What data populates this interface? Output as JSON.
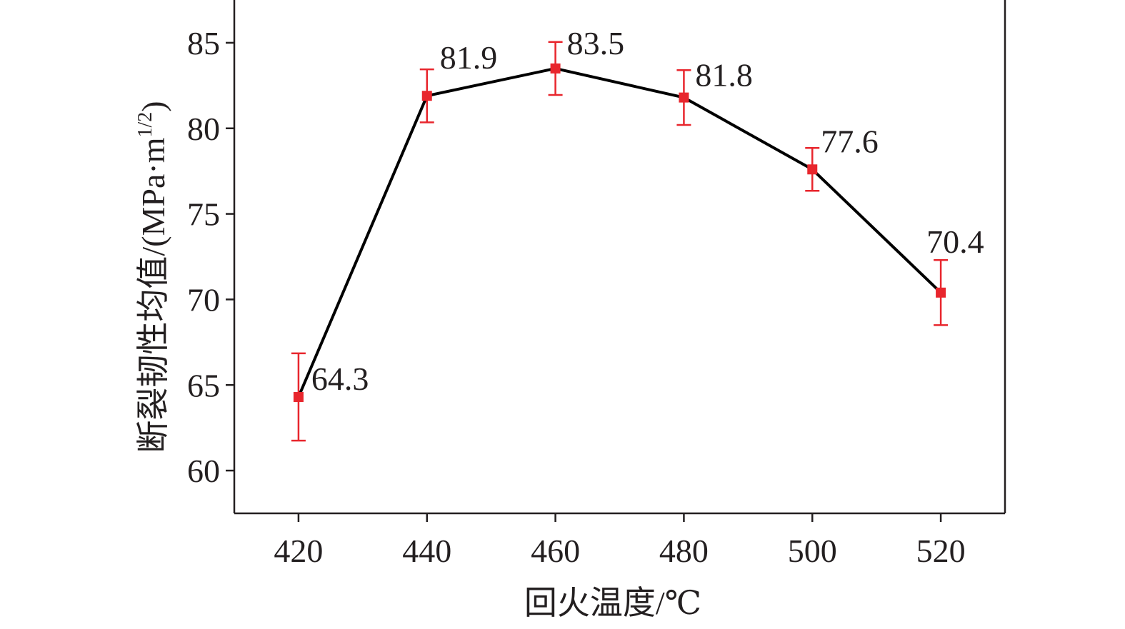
{
  "chart_data": {
    "type": "line",
    "xlabel": "回火温度/℃",
    "ylabel": "断裂韧性均值/(MPa·m",
    "ylabel_superscript": "1/2",
    "ylabel_close": ")",
    "x": [
      420,
      440,
      460,
      480,
      500,
      520
    ],
    "values": [
      64.3,
      81.9,
      83.5,
      81.8,
      77.6,
      70.4
    ],
    "value_labels": [
      "64.3",
      "81.9",
      "83.5",
      "81.8",
      "77.6",
      "70.4"
    ],
    "error": [
      2.55,
      1.55,
      1.55,
      1.6,
      1.25,
      1.9
    ],
    "xlim": [
      410,
      530
    ],
    "ylim": [
      57.5,
      87.5
    ],
    "xticks": [
      420,
      440,
      460,
      480,
      500,
      520
    ],
    "yticks": [
      60,
      65,
      70,
      75,
      80,
      85
    ],
    "grid": false,
    "legend": "none",
    "line_color": "#000000",
    "marker_color": "#e8262d",
    "axis_color": "#231f20"
  }
}
